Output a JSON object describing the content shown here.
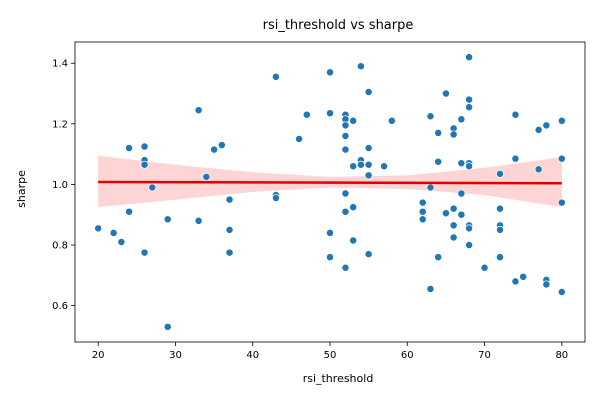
{
  "chart_data": {
    "type": "scatter",
    "title": "rsi_threshold vs sharpe",
    "xlabel": "rsi_threshold",
    "ylabel": "sharpe",
    "xlim": [
      17,
      83
    ],
    "ylim": [
      0.48,
      1.47
    ],
    "xticks": [
      20,
      30,
      40,
      50,
      60,
      70,
      80
    ],
    "yticks": [
      0.6,
      0.8,
      1.0,
      1.2,
      1.4
    ],
    "xtick_labels": [
      "20",
      "30",
      "40",
      "50",
      "60",
      "70",
      "80"
    ],
    "ytick_labels": [
      "0.6",
      "0.8",
      "1.0",
      "1.2",
      "1.4"
    ],
    "grid": false,
    "colors": {
      "points": "#1f77b4",
      "regression_line": "#e00000",
      "confidence_band": "#ffb8b8"
    },
    "regression": {
      "x": [
        20,
        80
      ],
      "y": [
        1.008,
        1.004
      ]
    },
    "confidence_band": {
      "x": [
        20,
        30,
        40,
        50,
        60,
        70,
        80
      ],
      "lower": [
        0.925,
        0.95,
        0.975,
        0.99,
        0.985,
        0.965,
        0.925
      ],
      "upper": [
        1.095,
        1.065,
        1.04,
        1.025,
        1.03,
        1.055,
        1.09
      ]
    },
    "points": [
      [
        20,
        0.855
      ],
      [
        22,
        0.84
      ],
      [
        23,
        0.81
      ],
      [
        24,
        1.12
      ],
      [
        24,
        0.91
      ],
      [
        26,
        1.125
      ],
      [
        26,
        1.08
      ],
      [
        26,
        1.065
      ],
      [
        26,
        0.775
      ],
      [
        27,
        0.99
      ],
      [
        29,
        0.885
      ],
      [
        29,
        0.53
      ],
      [
        33,
        1.245
      ],
      [
        33,
        0.88
      ],
      [
        34,
        1.025
      ],
      [
        35,
        1.115
      ],
      [
        36,
        1.13
      ],
      [
        37,
        0.95
      ],
      [
        37,
        0.85
      ],
      [
        37,
        0.775
      ],
      [
        43,
        1.355
      ],
      [
        43,
        0.965
      ],
      [
        43,
        0.955
      ],
      [
        46,
        1.15
      ],
      [
        47,
        1.23
      ],
      [
        50,
        1.37
      ],
      [
        50,
        1.235
      ],
      [
        50,
        0.84
      ],
      [
        50,
        0.76
      ],
      [
        52,
        1.23
      ],
      [
        52,
        1.215
      ],
      [
        52,
        1.195
      ],
      [
        52,
        1.16
      ],
      [
        52,
        1.115
      ],
      [
        52,
        0.97
      ],
      [
        52,
        0.91
      ],
      [
        52,
        0.725
      ],
      [
        53,
        1.21
      ],
      [
        53,
        1.06
      ],
      [
        53,
        0.925
      ],
      [
        53,
        0.815
      ],
      [
        54,
        1.39
      ],
      [
        54,
        1.08
      ],
      [
        54,
        1.065
      ],
      [
        55,
        1.305
      ],
      [
        55,
        1.12
      ],
      [
        55,
        1.065
      ],
      [
        55,
        1.03
      ],
      [
        55,
        0.77
      ],
      [
        57,
        1.06
      ],
      [
        58,
        1.21
      ],
      [
        62,
        0.94
      ],
      [
        62,
        0.91
      ],
      [
        62,
        0.885
      ],
      [
        63,
        1.225
      ],
      [
        63,
        0.99
      ],
      [
        63,
        0.655
      ],
      [
        64,
        1.17
      ],
      [
        64,
        1.075
      ],
      [
        64,
        0.76
      ],
      [
        65,
        1.3
      ],
      [
        65,
        0.905
      ],
      [
        66,
        1.185
      ],
      [
        66,
        1.165
      ],
      [
        66,
        0.92
      ],
      [
        66,
        0.865
      ],
      [
        66,
        0.825
      ],
      [
        67,
        1.215
      ],
      [
        67,
        1.07
      ],
      [
        67,
        0.97
      ],
      [
        67,
        0.9
      ],
      [
        68,
        1.42
      ],
      [
        68,
        1.28
      ],
      [
        68,
        1.255
      ],
      [
        68,
        1.07
      ],
      [
        68,
        1.06
      ],
      [
        68,
        0.865
      ],
      [
        68,
        0.855
      ],
      [
        68,
        0.8
      ],
      [
        70,
        0.725
      ],
      [
        72,
        1.035
      ],
      [
        72,
        0.92
      ],
      [
        72,
        0.865
      ],
      [
        72,
        0.85
      ],
      [
        72,
        0.76
      ],
      [
        74,
        1.23
      ],
      [
        74,
        1.085
      ],
      [
        74,
        0.68
      ],
      [
        75,
        0.695
      ],
      [
        77,
        1.18
      ],
      [
        77,
        1.05
      ],
      [
        78,
        1.195
      ],
      [
        78,
        0.685
      ],
      [
        78,
        0.67
      ],
      [
        80,
        1.21
      ],
      [
        80,
        1.085
      ],
      [
        80,
        0.94
      ],
      [
        80,
        0.645
      ]
    ]
  }
}
